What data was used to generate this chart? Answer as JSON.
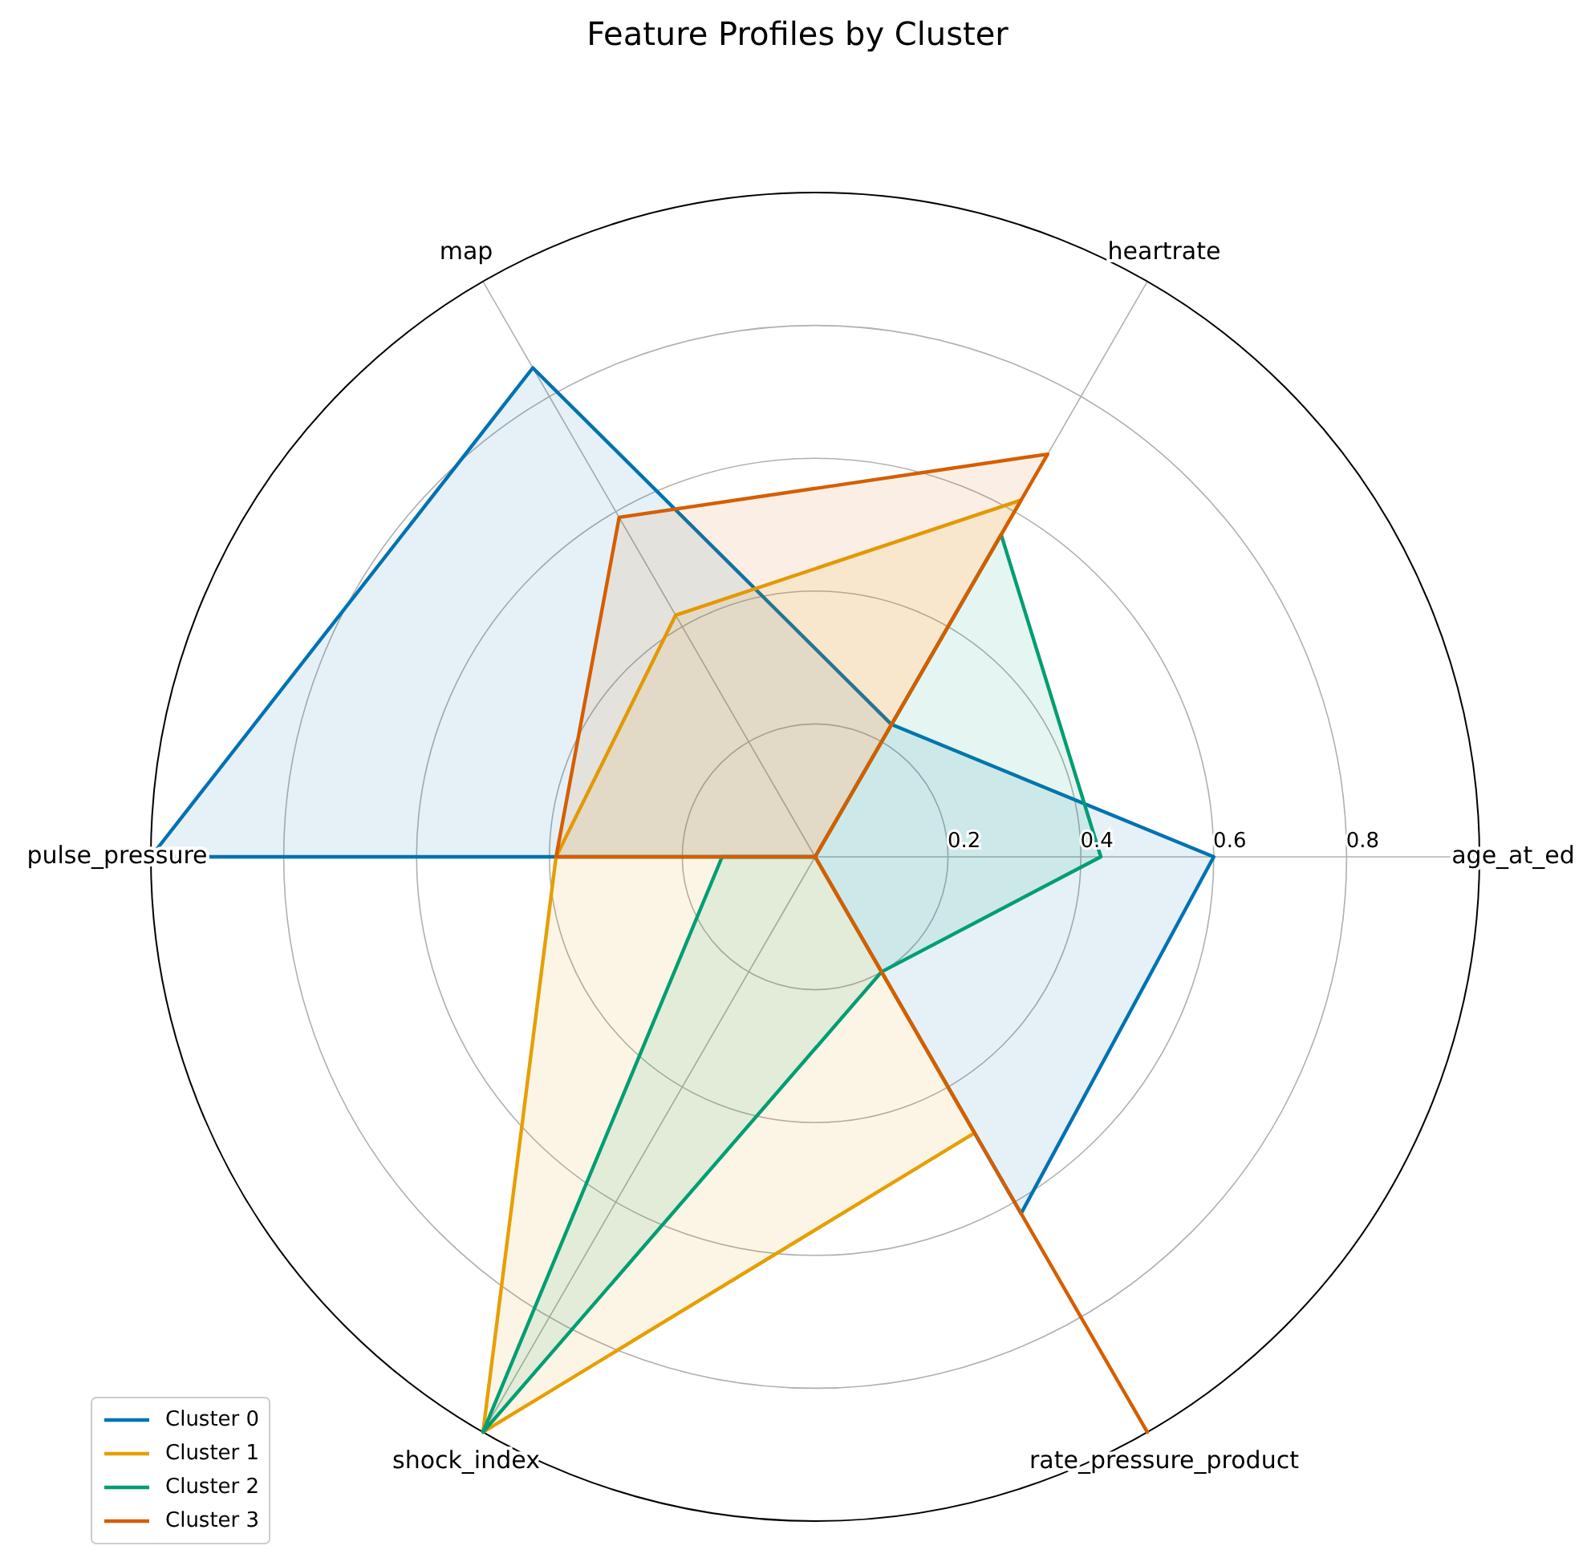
{
  "chart_data": {
    "type": "radar",
    "title": "Feature Profiles by Cluster",
    "categories": [
      "heartrate",
      "age_at_ed",
      "rate_pressure_product",
      "shock_index",
      "pulse_pressure",
      "map"
    ],
    "ylim": [
      0,
      1
    ],
    "yticks": [
      0.2,
      0.4,
      0.6,
      0.8
    ],
    "grid": true,
    "legend": "bottom left",
    "line_style": "solid",
    "marker": "none",
    "series": [
      {
        "name": "Cluster 0",
        "color": "#0072b2",
        "values": [
          0.23,
          0.6,
          0.62,
          0,
          1,
          0.85
        ]
      },
      {
        "name": "Cluster 1",
        "color": "#e69f00",
        "values": [
          0.62,
          0,
          0.48,
          1,
          0.39,
          0.42
        ]
      },
      {
        "name": "Cluster 2",
        "color": "#009e73",
        "values": [
          0.56,
          0.43,
          0.2,
          1,
          0.14,
          0
        ]
      },
      {
        "name": "Cluster 3",
        "color": "#d55e00",
        "values": [
          0.7,
          0,
          1,
          0,
          0.39,
          0.59
        ]
      }
    ]
  }
}
